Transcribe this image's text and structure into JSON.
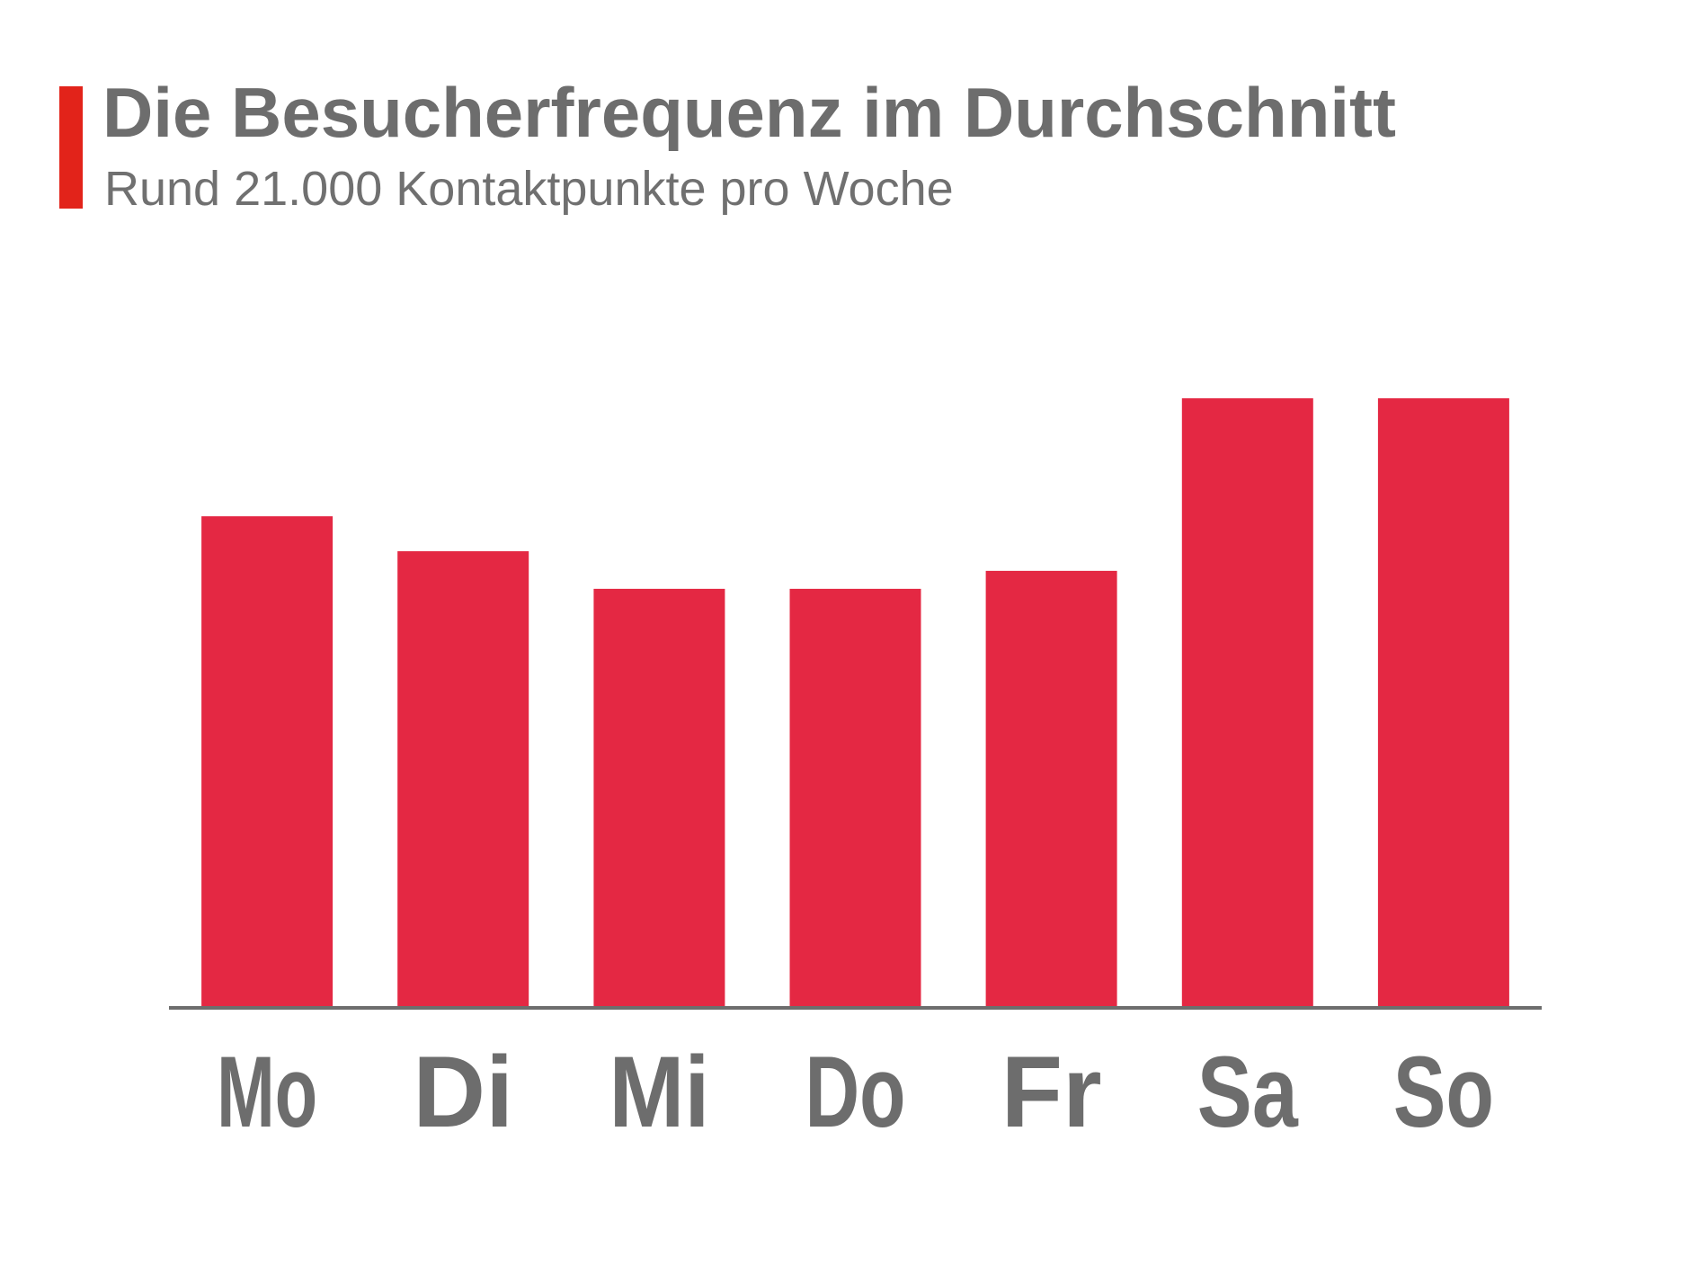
{
  "header": {
    "title": "Die Besucherfrequenz im Durchschnitt",
    "subtitle": "Rund 21.000 Kontaktpunkte pro Woche"
  },
  "colors": {
    "accent": "#e2231a",
    "bar": "#e42843",
    "axis": "#6d6d6d",
    "text": "#6d6d6d"
  },
  "chart_data": {
    "type": "bar",
    "title": "Die Besucherfrequenz im Durchschnitt",
    "subtitle": "Rund 21.000 Kontaktpunkte pro Woche",
    "categories": [
      "Mo",
      "Di",
      "Mi",
      "Do",
      "Fr",
      "Sa",
      "So"
    ],
    "values": [
      2674,
      2483,
      2278,
      2278,
      2376,
      3318,
      3318
    ],
    "xlabel": "",
    "ylabel": "",
    "ylim": [
      0,
      3318
    ],
    "grid": false,
    "legend": "none"
  }
}
